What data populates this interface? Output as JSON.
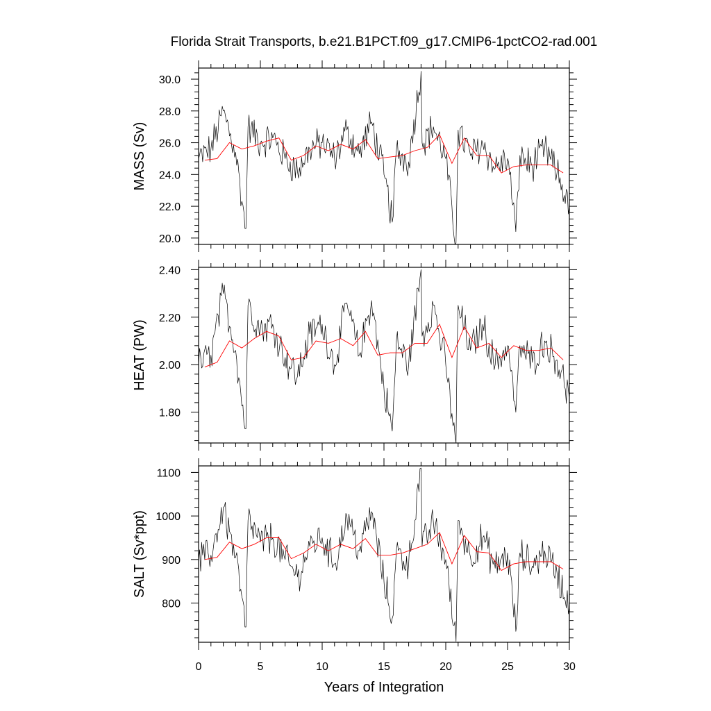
{
  "title": "Florida Strait Transports, b.e21.B1PCT.f09_g17.CMIP6-1pctCO2-rad.001",
  "xlabel": "Years of Integration",
  "xtick_labels": [
    "0",
    "5",
    "10",
    "15",
    "20",
    "25",
    "30"
  ],
  "colors": {
    "raw": "#000000",
    "annual": "#ff0000",
    "frame": "#000000"
  },
  "chart_data": [
    {
      "type": "line",
      "ylabel": "MASS (Sv)",
      "xlim": [
        0,
        30
      ],
      "ylim": [
        19.6,
        30.7
      ],
      "yticks": [
        20,
        22,
        24,
        26,
        28,
        30
      ],
      "ytick_labels": [
        "20.0",
        "22.0",
        "24.0",
        "26.0",
        "28.0",
        "30.0"
      ],
      "grid": false,
      "anchors_x": [
        0,
        1,
        2,
        3,
        3.8,
        4,
        5,
        6,
        7,
        8,
        9,
        10,
        11,
        12,
        13,
        14,
        15,
        15.7,
        16,
        17,
        18,
        18.1,
        19,
        20,
        20.8,
        21,
        22,
        23,
        24,
        25,
        25.7,
        26,
        27,
        28,
        29,
        30
      ],
      "anchors_y": [
        25.0,
        25.6,
        28.0,
        25.4,
        20.6,
        27.0,
        26.0,
        26.3,
        25.0,
        24.2,
        25.6,
        26.0,
        25.0,
        26.8,
        25.3,
        27.3,
        24.0,
        21.0,
        25.5,
        24.8,
        30.5,
        26.0,
        27.0,
        25.0,
        19.7,
        26.8,
        25.2,
        25.9,
        24.4,
        25.0,
        20.4,
        25.2,
        24.5,
        25.6,
        24.1,
        22.0
      ],
      "series": [
        {
          "name": "",
          "x": [
            0.5,
            1.5,
            2.5,
            3.5,
            4.5,
            5.5,
            6.5,
            7.5,
            8.5,
            9.5,
            10.5,
            11.5,
            12.5,
            13.5,
            14.5,
            15.5,
            16.5,
            17.5,
            18.5,
            19.5,
            20.5,
            21.5,
            22.5,
            23.5,
            24.5,
            25.5,
            26.5,
            27.5,
            28.5,
            29.5
          ],
          "values": [
            24.9,
            25.0,
            26.0,
            25.6,
            25.8,
            26.1,
            26.3,
            24.9,
            25.2,
            25.8,
            25.5,
            25.9,
            25.6,
            26.2,
            25.0,
            25.1,
            25.2,
            25.5,
            25.7,
            26.5,
            24.7,
            26.3,
            25.2,
            25.2,
            24.1,
            24.5,
            24.6,
            24.6,
            24.6,
            24.1
          ]
        }
      ]
    },
    {
      "type": "line",
      "ylabel": "HEAT (PW)",
      "xlim": [
        0,
        30
      ],
      "ylim": [
        1.67,
        2.41
      ],
      "yticks": [
        1.8,
        2.0,
        2.2,
        2.4
      ],
      "ytick_labels": [
        "1.80",
        "2.00",
        "2.20",
        "2.40"
      ],
      "grid": false,
      "anchors_x": [
        0,
        1,
        2,
        3,
        3.8,
        4,
        5,
        6,
        7,
        8,
        9,
        10,
        11,
        12,
        13,
        14,
        15,
        15.7,
        16,
        17,
        18,
        18.1,
        19,
        20,
        20.8,
        21,
        22,
        23,
        24,
        25,
        25.7,
        26,
        27,
        28,
        29,
        30
      ],
      "anchors_y": [
        2.0,
        2.04,
        2.3,
        2.06,
        1.73,
        2.25,
        2.15,
        2.17,
        2.03,
        1.95,
        2.13,
        2.17,
        2.0,
        2.26,
        2.04,
        2.27,
        1.9,
        1.72,
        2.1,
        2.0,
        2.4,
        2.12,
        2.25,
        2.0,
        1.67,
        2.25,
        2.06,
        2.17,
        2.0,
        2.08,
        1.8,
        2.08,
        2.01,
        2.1,
        2.02,
        1.86
      ],
      "series": [
        {
          "name": "",
          "x": [
            0.5,
            1.5,
            2.5,
            3.5,
            4.5,
            5.5,
            6.5,
            7.5,
            8.5,
            9.5,
            10.5,
            11.5,
            12.5,
            13.5,
            14.5,
            15.5,
            16.5,
            17.5,
            18.5,
            19.5,
            20.5,
            21.5,
            22.5,
            23.5,
            24.5,
            25.5,
            26.5,
            27.5,
            28.5,
            29.5
          ],
          "values": [
            1.99,
            2.01,
            2.1,
            2.07,
            2.11,
            2.14,
            2.12,
            2.02,
            2.03,
            2.1,
            2.09,
            2.11,
            2.08,
            2.14,
            2.04,
            2.05,
            2.05,
            2.09,
            2.09,
            2.17,
            2.03,
            2.16,
            2.07,
            2.09,
            2.03,
            2.08,
            2.06,
            2.06,
            2.07,
            2.02
          ]
        }
      ]
    },
    {
      "type": "line",
      "ylabel": "SALT (Sv*ppt)",
      "xlim": [
        0,
        30
      ],
      "ylim": [
        710,
        1115
      ],
      "yticks": [
        800,
        900,
        1000,
        1100
      ],
      "ytick_labels": [
        "800",
        "900",
        "1000",
        "1100"
      ],
      "grid": false,
      "anchors_x": [
        0,
        1,
        2,
        3,
        3.8,
        4,
        5,
        6,
        7,
        8,
        9,
        10,
        11,
        12,
        13,
        14,
        15,
        15.7,
        16,
        17,
        18,
        18.1,
        19,
        20,
        20.8,
        21,
        22,
        23,
        24,
        25,
        25.7,
        26,
        27,
        28,
        29,
        30
      ],
      "anchors_y": [
        900,
        910,
        1020,
        905,
        745,
        990,
        940,
        950,
        900,
        860,
        930,
        950,
        890,
        1000,
        920,
        1010,
        850,
        765,
        920,
        890,
        1110,
        930,
        985,
        900,
        712,
        990,
        905,
        950,
        880,
        915,
        735,
        915,
        885,
        920,
        870,
        790
      ],
      "series": [
        {
          "name": "",
          "x": [
            0.5,
            1.5,
            2.5,
            3.5,
            4.5,
            5.5,
            6.5,
            7.5,
            8.5,
            9.5,
            10.5,
            11.5,
            12.5,
            13.5,
            14.5,
            15.5,
            16.5,
            17.5,
            18.5,
            19.5,
            20.5,
            21.5,
            22.5,
            23.5,
            24.5,
            25.5,
            26.5,
            27.5,
            28.5,
            29.5
          ],
          "values": [
            900,
            905,
            940,
            925,
            935,
            950,
            950,
            902,
            915,
            935,
            920,
            935,
            925,
            948,
            910,
            910,
            915,
            925,
            935,
            962,
            890,
            955,
            918,
            915,
            875,
            890,
            895,
            895,
            895,
            878
          ]
        }
      ]
    }
  ]
}
